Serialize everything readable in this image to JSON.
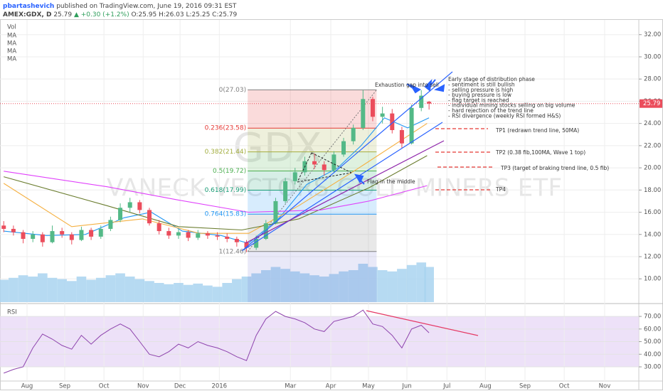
{
  "header": {
    "author": "pbartashevich",
    "published": "published on TradingView.com, June 19, 2016 09:31 EST",
    "symbol": "AMEX:GDX, D",
    "last": "25.79",
    "change": "▲ +0.30 (+1.2%)",
    "ohlc": "O:25.95 H:26.03 L:25.25 C:25.79"
  },
  "chart_data": [
    {
      "type": "candlestick",
      "watermark": "GDX",
      "subtitle": "VANECK VECTORS GOLD MINERS ETF",
      "legend": [
        "Vol",
        "MA",
        "MA",
        "MA",
        "MA"
      ],
      "x": [
        -0.6,
        -0.35,
        -0.1,
        0.15,
        0.4,
        0.65,
        0.9,
        1.15,
        1.4,
        1.65,
        1.9,
        2.15,
        2.4,
        2.65,
        2.9,
        3.15,
        3.4,
        3.65,
        3.9,
        4.15,
        4.4,
        4.65,
        4.9,
        5.15,
        5.4,
        5.65,
        5.9,
        6.15,
        6.4,
        6.65,
        6.9,
        7.15,
        7.4,
        7.65,
        7.9,
        8.15,
        8.4,
        8.65,
        8.9,
        9.15,
        9.4,
        9.65,
        9.9,
        10.15,
        10.35
      ],
      "open": [
        14.8,
        14.5,
        14.2,
        13.6,
        14.0,
        13.3,
        14.3,
        14.0,
        13.5,
        14.4,
        13.8,
        14.5,
        15.3,
        16.4,
        16.9,
        16.2,
        15.0,
        14.3,
        13.9,
        14.2,
        13.7,
        14.1,
        13.9,
        13.8,
        13.6,
        13.3,
        12.8,
        13.6,
        15.0,
        17.0,
        18.8,
        19.6,
        20.6,
        20.3,
        19.8,
        21.2,
        22.4,
        23.6,
        26.2,
        24.6,
        24.9,
        23.4,
        22.2,
        25.4,
        25.95
      ],
      "high": [
        15.2,
        14.8,
        14.4,
        14.3,
        14.2,
        14.8,
        14.6,
        14.2,
        14.7,
        14.6,
        14.8,
        15.6,
        16.8,
        17.3,
        17.1,
        16.4,
        15.3,
        14.6,
        14.5,
        14.4,
        14.4,
        14.3,
        14.2,
        14.1,
        13.8,
        13.5,
        13.9,
        15.3,
        17.3,
        19.1,
        20.0,
        21.0,
        21.3,
        20.6,
        21.5,
        22.7,
        23.9,
        27.0,
        26.4,
        25.5,
        25.3,
        23.7,
        25.7,
        27.0,
        26.03
      ],
      "low": [
        14.2,
        13.9,
        13.2,
        13.3,
        12.9,
        13.2,
        13.7,
        13.1,
        13.4,
        13.5,
        13.6,
        14.3,
        15.1,
        16.0,
        15.9,
        14.8,
        14.0,
        13.6,
        13.6,
        13.4,
        13.5,
        13.6,
        13.5,
        13.3,
        12.9,
        12.4,
        12.6,
        13.5,
        14.9,
        16.8,
        18.5,
        19.3,
        19.9,
        19.3,
        19.6,
        21.0,
        22.1,
        23.4,
        24.2,
        24.0,
        23.1,
        21.8,
        22.1,
        25.1,
        25.25
      ],
      "close": [
        14.5,
        14.2,
        13.6,
        14.0,
        13.3,
        14.3,
        14.0,
        13.5,
        14.4,
        13.8,
        14.5,
        15.3,
        16.4,
        16.9,
        16.2,
        15.0,
        14.3,
        13.9,
        14.2,
        13.7,
        14.1,
        13.9,
        13.8,
        13.6,
        13.3,
        12.8,
        13.6,
        15.0,
        17.0,
        18.8,
        19.6,
        20.6,
        20.3,
        19.8,
        21.2,
        22.4,
        23.6,
        26.2,
        24.6,
        24.9,
        23.4,
        22.2,
        25.4,
        26.5,
        25.79
      ],
      "up_color": "#53b987",
      "down_color": "#eb4d5c",
      "volume": [
        35,
        38,
        42,
        40,
        45,
        38,
        36,
        33,
        40,
        35,
        38,
        42,
        45,
        40,
        36,
        33,
        30,
        28,
        30,
        27,
        29,
        26,
        24,
        30,
        36,
        40,
        45,
        50,
        55,
        52,
        48,
        45,
        42,
        40,
        44,
        48,
        50,
        60,
        55,
        50,
        48,
        52,
        58,
        62,
        55
      ],
      "volume_lim": [
        0,
        100
      ],
      "volume_color": "#a9d4f0",
      "series": [
        {
          "color": "#2196f3",
          "x": [
            -0.6,
            0.5,
            1.5,
            2.5,
            3.2,
            4.0,
            5.0,
            5.7,
            6.5,
            7.2,
            8.0,
            8.6,
            9.2,
            9.8,
            10.35
          ],
          "values": [
            14.3,
            13.9,
            14.0,
            15.5,
            16.0,
            14.3,
            13.9,
            13.2,
            15.5,
            18.5,
            20.0,
            22.0,
            24.5,
            23.6,
            24.5
          ]
        },
        {
          "color": "#f5b041",
          "x": [
            -0.6,
            1.15,
            2.97,
            4.43,
            5.71,
            7.0,
            8.46,
            10.3
          ],
          "values": [
            18.6,
            14.7,
            15.4,
            14.1,
            14.1,
            16.6,
            19.8,
            24.0
          ]
        },
        {
          "color": "#6b7d2f",
          "x": [
            -0.6,
            2.05,
            3.9,
            5.53,
            7.0,
            8.8,
            10.3
          ],
          "values": [
            19.2,
            16.6,
            14.7,
            14.4,
            15.4,
            18.2,
            21.1
          ]
        },
        {
          "color": "#e040fb",
          "x": [
            -0.6,
            2.05,
            3.9,
            5.7,
            7.55,
            8.8,
            10.3
          ],
          "values": [
            19.7,
            18.3,
            17.1,
            16.0,
            16.2,
            17.0,
            18.4
          ]
        }
      ],
      "xlim": [
        -0.696,
        15.75
      ],
      "xticks": [
        {
          "value": 0,
          "label": "Aug"
        },
        {
          "value": 0.97,
          "label": "Sep"
        },
        {
          "value": 1.98,
          "label": "Oct"
        },
        {
          "value": 2.99,
          "label": "Nov"
        },
        {
          "value": 3.94,
          "label": "Dec"
        },
        {
          "value": 4.95,
          "label": "2016"
        },
        {
          "value": 6.78,
          "label": "Mar"
        },
        {
          "value": 7.82,
          "label": "Apr"
        },
        {
          "value": 8.79,
          "label": "May"
        },
        {
          "value": 9.78,
          "label": "Jun"
        },
        {
          "value": 10.81,
          "label": "Jul"
        },
        {
          "value": 11.8,
          "label": "Aug"
        },
        {
          "value": 12.82,
          "label": "Sep"
        },
        {
          "value": 13.83,
          "label": "Oct"
        },
        {
          "value": 14.87,
          "label": "Nov"
        }
      ],
      "ylim": [
        7.9,
        33.2
      ],
      "yticks": [
        {
          "value": 10,
          "label": "10.00"
        },
        {
          "value": 12,
          "label": "12.00"
        },
        {
          "value": 14,
          "label": "14.00"
        },
        {
          "value": 16,
          "label": "16.00"
        },
        {
          "value": 18,
          "label": "18.00"
        },
        {
          "value": 20,
          "label": "20.00"
        },
        {
          "value": 22,
          "label": "22.00"
        },
        {
          "value": 24,
          "label": "24.00"
        },
        {
          "value": 26,
          "label": "26.00"
        },
        {
          "value": 28,
          "label": "28.00"
        },
        {
          "value": 30,
          "label": "30.00"
        },
        {
          "value": 32,
          "label": "32.00"
        }
      ],
      "grid": true,
      "last_price": {
        "value": 25.79,
        "label": "25.79",
        "color": "#eb4d5c"
      },
      "fib_x": [
        5.68,
        9.0
      ],
      "fib_levels": [
        {
          "value": 27.03,
          "label": "0(27.03)",
          "color": "#808080"
        },
        {
          "value": 23.58,
          "label": "0.236(23.58)",
          "color": "#e53935"
        },
        {
          "value": 21.44,
          "label": "0.382(21.44)",
          "color": "#a2ad3e"
        },
        {
          "value": 19.72,
          "label": "0.5(19.72)",
          "color": "#4caf50"
        },
        {
          "value": 17.99,
          "label": "0.618(17.99)",
          "color": "#1b9e77"
        },
        {
          "value": 15.83,
          "label": "0.764(15.83)",
          "color": "#2196f3"
        },
        {
          "value": 12.46,
          "label": "1(12.46)",
          "color": "#808080"
        }
      ],
      "annotations": {
        "gap": "Exhaustion gap into sell",
        "flag": "Flag in the middle",
        "heading": "Early stage of distribution phase",
        "bullets": [
          "- sentiment is still bullish",
          "- selling pressure is high",
          "- buying pressure is low",
          "- flag target is reached",
          "- individual mining stocks selling on big volume",
          "- hard rejection of the trend line",
          "- RSI divergence (weekly RSI formed H&S)"
        ],
        "targets": [
          "TP1 (redrawn trend line, 50MA)",
          "TP2 (0.38 fib,100MA, Wave 1 top)",
          "TP3 (target of braking trend line, 0.5 fib)",
          "TP4"
        ]
      }
    },
    {
      "type": "line",
      "title": "RSI",
      "color": "#8e44ad",
      "x": [
        -0.6,
        -0.35,
        -0.1,
        0.15,
        0.4,
        0.65,
        0.9,
        1.15,
        1.4,
        1.65,
        1.9,
        2.15,
        2.4,
        2.65,
        2.9,
        3.15,
        3.4,
        3.65,
        3.9,
        4.15,
        4.4,
        4.65,
        4.9,
        5.15,
        5.4,
        5.65,
        5.9,
        6.15,
        6.4,
        6.65,
        6.9,
        7.15,
        7.4,
        7.65,
        7.9,
        8.15,
        8.4,
        8.65,
        8.9,
        9.15,
        9.4,
        9.65,
        9.9,
        10.15,
        10.35
      ],
      "values": [
        25,
        28,
        30,
        45,
        56,
        52,
        47,
        44,
        55,
        48,
        55,
        60,
        64,
        60,
        50,
        40,
        38,
        42,
        48,
        45,
        50,
        47,
        45,
        42,
        38,
        35,
        55,
        68,
        74,
        70,
        68,
        65,
        60,
        58,
        66,
        68,
        70,
        75,
        64,
        62,
        55,
        45,
        60,
        63,
        57
      ],
      "ylim": [
        19.3,
        78.5
      ],
      "yticks": [
        {
          "value": 30,
          "label": "30.00"
        },
        {
          "value": 40,
          "label": "40.00"
        },
        {
          "value": 50,
          "label": "50.00"
        },
        {
          "value": 60,
          "label": "60.00"
        },
        {
          "value": 70,
          "label": "70.00"
        }
      ],
      "band": [
        30,
        70
      ],
      "band_color": "#e8d9f6"
    }
  ]
}
